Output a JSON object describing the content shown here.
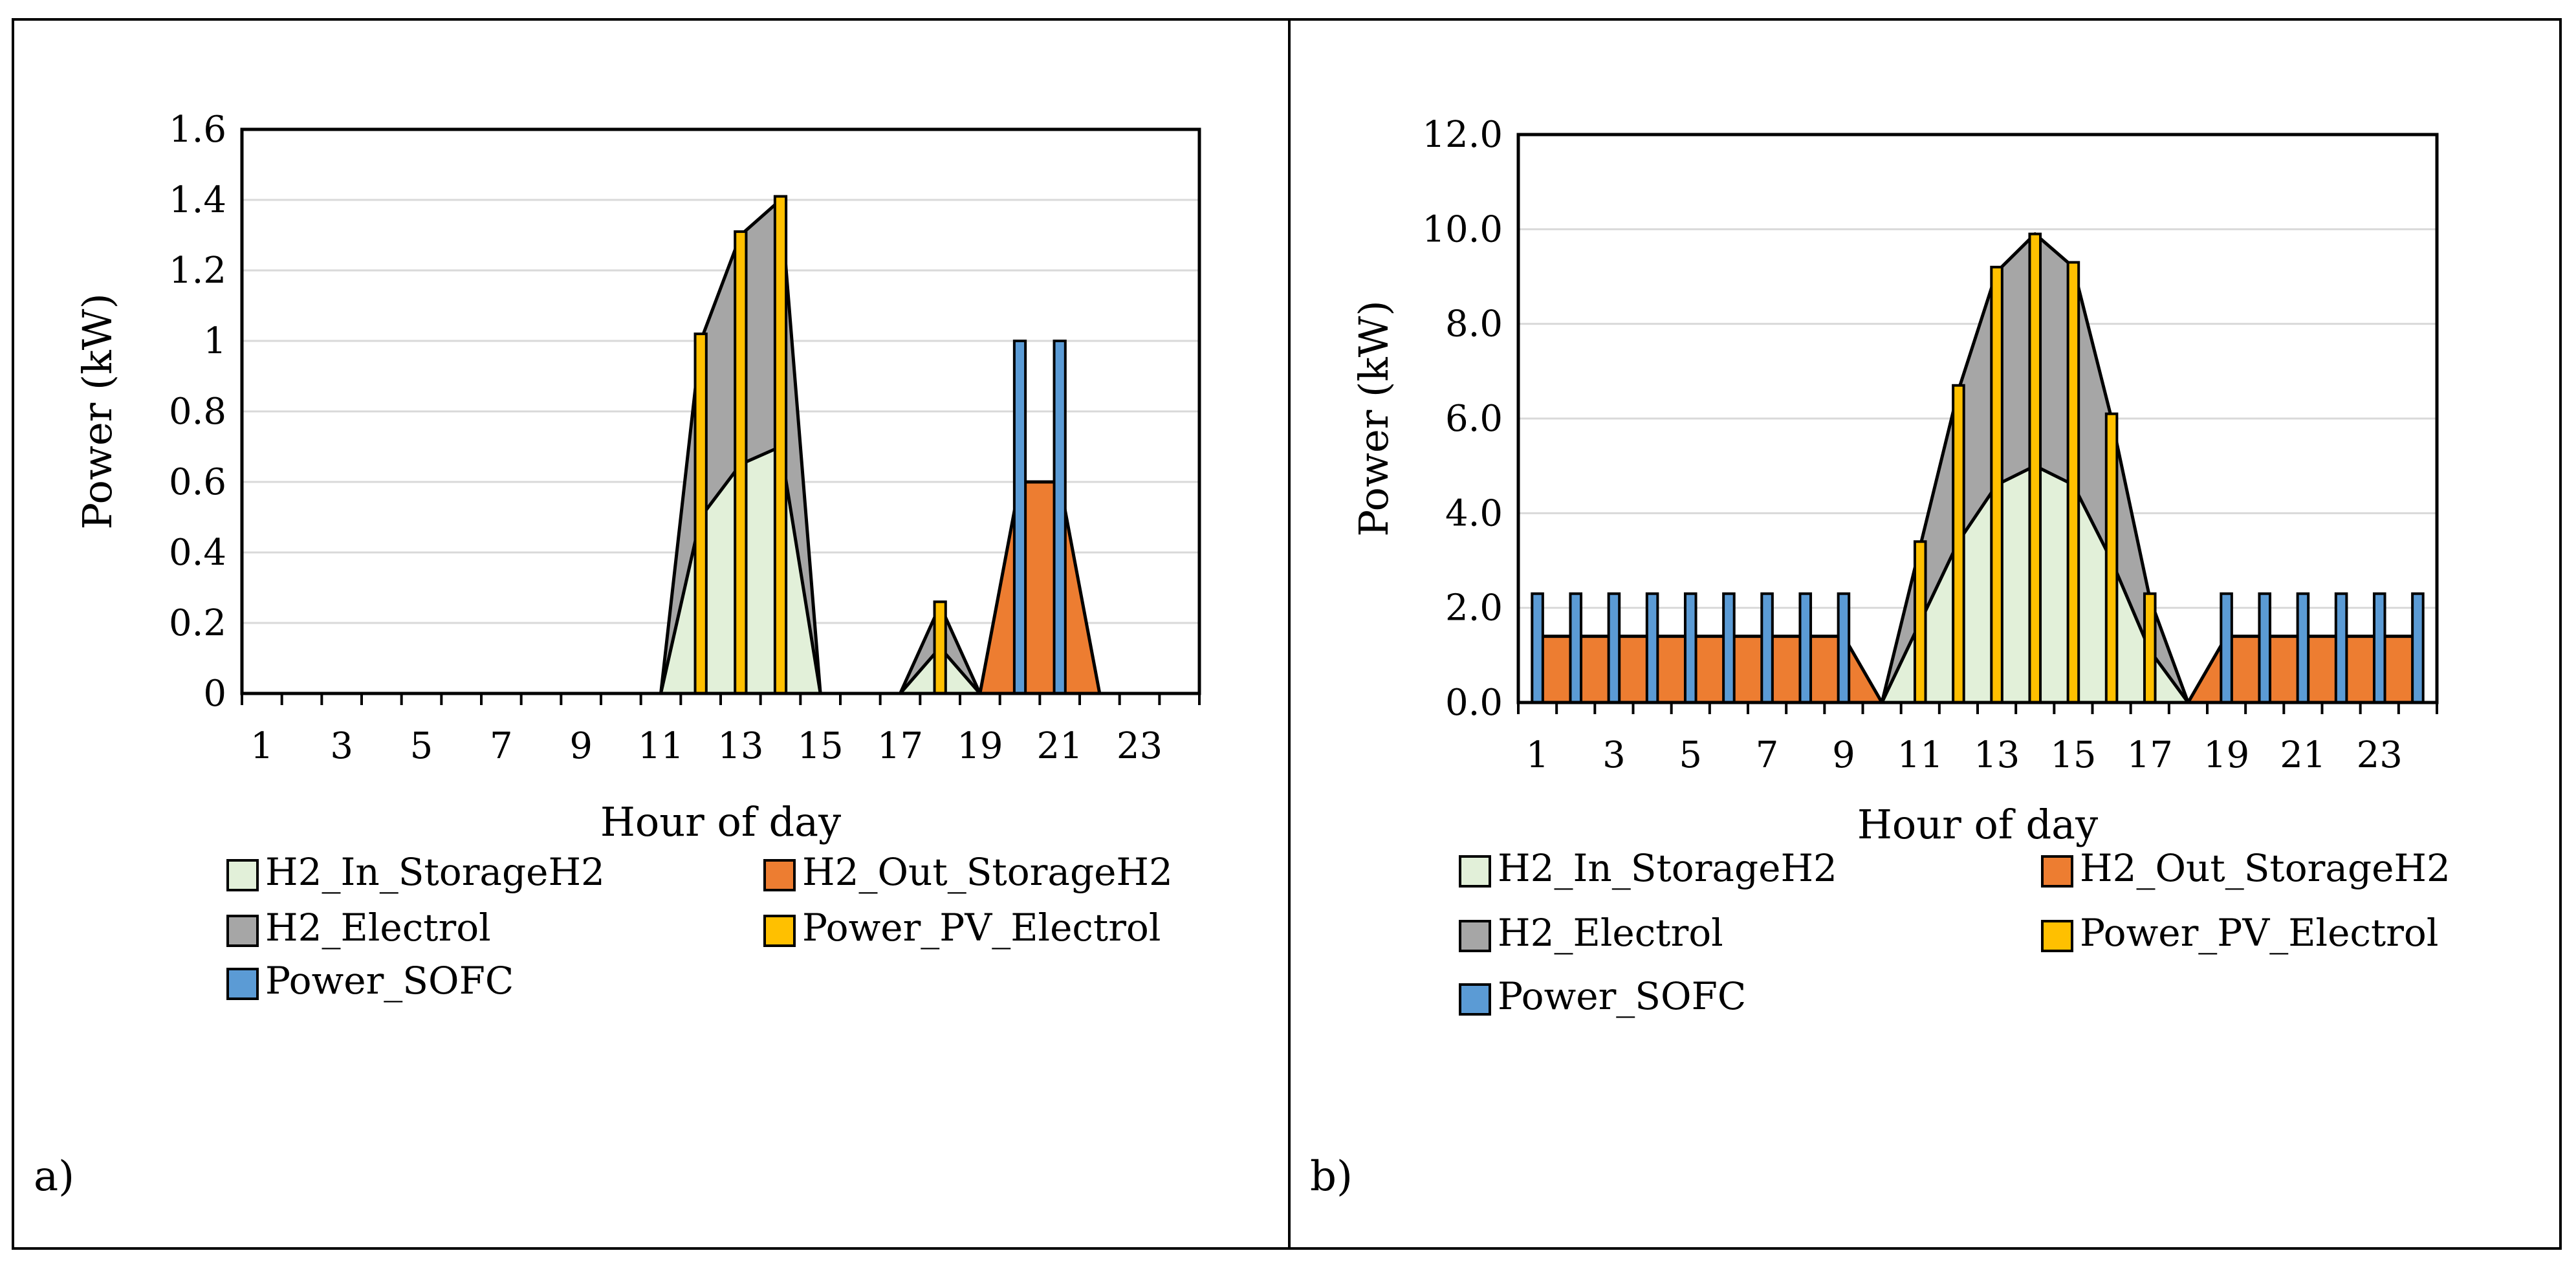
{
  "colors": {
    "h2_in_storage": "#e2f0d9",
    "h2_out_storage": "#ed7d31",
    "h2_electrol": "#a6a6a6",
    "power_pv": "#ffc000",
    "power_sofc": "#5b9bd5",
    "grid": "#d9d9d9",
    "outline": "#000000"
  },
  "chart_data": [
    {
      "panel_label": "a)",
      "type": "area",
      "title": "",
      "xlabel": "Hour of day",
      "ylabel": "Power (kW)",
      "ylim": [
        0,
        1.6
      ],
      "ytick_values": [
        0,
        0.2,
        0.4,
        0.6,
        0.8,
        1,
        1.2,
        1.4,
        1.6
      ],
      "ytick_labels": [
        "0",
        "0.2",
        "0.4",
        "0.6",
        "0.8",
        "1",
        "1.2",
        "1.4",
        "1.6"
      ],
      "xtick_labels": [
        "1",
        "3",
        "5",
        "7",
        "9",
        "11",
        "13",
        "15",
        "17",
        "19",
        "21",
        "23"
      ],
      "x": [
        1,
        2,
        3,
        4,
        5,
        6,
        7,
        8,
        9,
        10,
        11,
        12,
        13,
        14,
        15,
        16,
        17,
        18,
        19,
        20,
        21,
        22,
        23,
        24
      ],
      "legend": [
        "H2_In_StorageH2",
        "H2_Out_StorageH2",
        "H2_Electrol",
        "Power_PV_Electrol",
        "Power_SOFC"
      ],
      "series": [
        {
          "name": "H2_In_StorageH2",
          "kind": "area",
          "color_key": "h2_in_storage",
          "values": [
            0,
            0,
            0,
            0,
            0,
            0,
            0,
            0,
            0,
            0,
            0,
            0.5,
            0.65,
            0.7,
            0,
            0,
            0,
            0.13,
            0,
            0,
            0,
            0,
            0,
            0
          ]
        },
        {
          "name": "H2_Out_StorageH2",
          "kind": "area",
          "color_key": "h2_out_storage",
          "values": [
            0,
            0,
            0,
            0,
            0,
            0,
            0,
            0,
            0,
            0,
            0,
            0,
            0,
            0,
            0,
            0,
            0,
            0,
            0,
            0.6,
            0.6,
            0,
            0,
            0
          ]
        },
        {
          "name": "H2_Electrol",
          "kind": "area",
          "color_key": "h2_electrol",
          "values": [
            0,
            0,
            0,
            0,
            0,
            0,
            0,
            0,
            0,
            0,
            0,
            1.0,
            1.3,
            1.4,
            0,
            0,
            0,
            0.25,
            0,
            0,
            0,
            0,
            0,
            0
          ]
        },
        {
          "name": "Power_PV_Electrol",
          "kind": "bar",
          "color_key": "power_pv",
          "values": [
            0,
            0,
            0,
            0,
            0,
            0,
            0,
            0,
            0,
            0,
            0,
            1.02,
            1.31,
            1.41,
            0,
            0,
            0,
            0.26,
            0,
            0,
            0,
            0,
            0,
            0
          ]
        },
        {
          "name": "Power_SOFC",
          "kind": "bar",
          "color_key": "power_sofc",
          "values": [
            0,
            0,
            0,
            0,
            0,
            0,
            0,
            0,
            0,
            0,
            0,
            0,
            0,
            0,
            0,
            0,
            0,
            0,
            0,
            1.0,
            1.0,
            0,
            0,
            0
          ]
        }
      ]
    },
    {
      "panel_label": "b)",
      "type": "area",
      "title": "",
      "xlabel": "Hour of day",
      "ylabel": "Power (kW)",
      "ylim": [
        0,
        12
      ],
      "ytick_values": [
        0,
        2,
        4,
        6,
        8,
        10,
        12
      ],
      "ytick_labels": [
        "0.0",
        "2.0",
        "4.0",
        "6.0",
        "8.0",
        "10.0",
        "12.0"
      ],
      "xtick_labels": [
        "1",
        "3",
        "5",
        "7",
        "9",
        "11",
        "13",
        "15",
        "17",
        "19",
        "21",
        "23"
      ],
      "x": [
        1,
        2,
        3,
        4,
        5,
        6,
        7,
        8,
        9,
        10,
        11,
        12,
        13,
        14,
        15,
        16,
        17,
        18,
        19,
        20,
        21,
        22,
        23,
        24
      ],
      "legend": [
        "H2_In_StorageH2",
        "H2_Out_StorageH2",
        "H2_Electrol",
        "Power_PV_Electrol",
        "Power_SOFC"
      ],
      "series": [
        {
          "name": "H2_In_StorageH2",
          "kind": "area",
          "color_key": "h2_in_storage",
          "values": [
            0,
            0,
            0,
            0,
            0,
            0,
            0,
            0,
            0,
            0,
            1.7,
            3.4,
            4.6,
            5.0,
            4.6,
            3.0,
            1.1,
            0,
            0,
            0,
            0,
            0,
            0,
            0
          ]
        },
        {
          "name": "H2_Out_StorageH2",
          "kind": "area",
          "color_key": "h2_out_storage",
          "values": [
            1.4,
            1.4,
            1.4,
            1.4,
            1.4,
            1.4,
            1.4,
            1.4,
            1.4,
            0,
            0,
            0,
            0,
            0,
            0,
            0,
            0,
            0,
            1.4,
            1.4,
            1.4,
            1.4,
            1.4,
            1.4
          ]
        },
        {
          "name": "H2_Electrol",
          "kind": "area",
          "color_key": "h2_electrol",
          "values": [
            0,
            0,
            0,
            0,
            0,
            0,
            0,
            0,
            0,
            0,
            3.3,
            6.6,
            9.1,
            9.9,
            9.2,
            6.0,
            2.2,
            0,
            0,
            0,
            0,
            0,
            0,
            0
          ]
        },
        {
          "name": "Power_PV_Electrol",
          "kind": "bar",
          "color_key": "power_pv",
          "values": [
            0,
            0,
            0,
            0,
            0,
            0,
            0,
            0,
            0,
            0,
            3.4,
            6.7,
            9.2,
            9.9,
            9.3,
            6.1,
            2.3,
            0,
            0,
            0,
            0,
            0,
            0,
            0
          ]
        },
        {
          "name": "Power_SOFC",
          "kind": "bar",
          "color_key": "power_sofc",
          "values": [
            2.3,
            2.3,
            2.3,
            2.3,
            2.3,
            2.3,
            2.3,
            2.3,
            2.3,
            0,
            0,
            0,
            0,
            0,
            0,
            0,
            0,
            0,
            2.3,
            2.3,
            2.3,
            2.3,
            2.3,
            2.3
          ]
        }
      ]
    }
  ]
}
